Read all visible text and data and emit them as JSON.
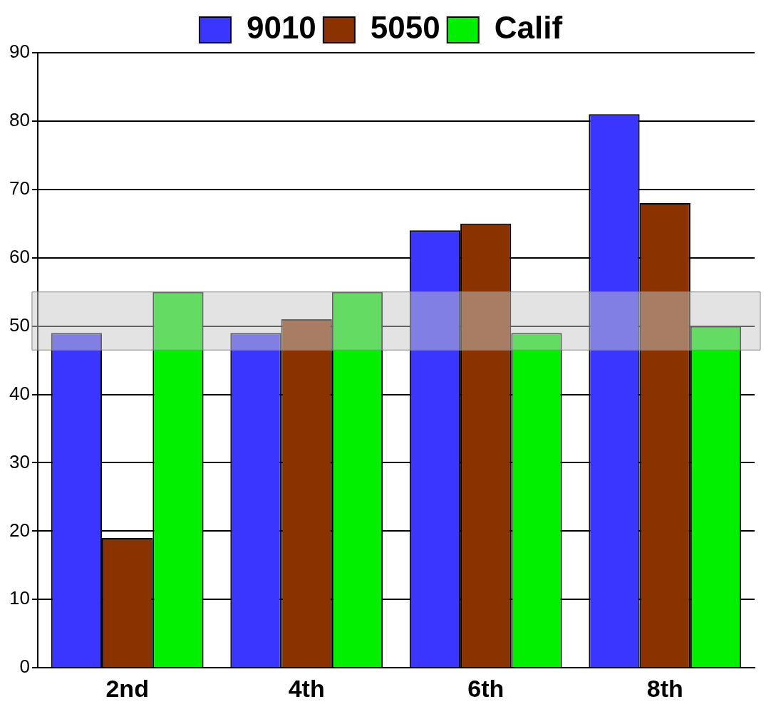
{
  "chart_data": {
    "type": "bar",
    "categories": [
      "2nd",
      "4th",
      "6th",
      "8th"
    ],
    "series": [
      {
        "name": "9010",
        "color": "#3a36ff",
        "values": [
          49,
          49,
          64,
          81
        ]
      },
      {
        "name": "5050",
        "color": "#8b3300",
        "values": [
          19,
          51,
          65,
          68
        ]
      },
      {
        "name": "Calif",
        "color": "#00f000",
        "values": [
          55,
          55,
          49,
          50
        ]
      }
    ],
    "ylim": [
      0,
      90
    ],
    "yticks": [
      0,
      10,
      20,
      30,
      40,
      50,
      60,
      70,
      80,
      90
    ],
    "grid": "y",
    "legend": "top",
    "bands": [
      {
        "axis": "y",
        "from": 46.5,
        "to": 55,
        "color": "#c8c8c8"
      }
    ]
  }
}
